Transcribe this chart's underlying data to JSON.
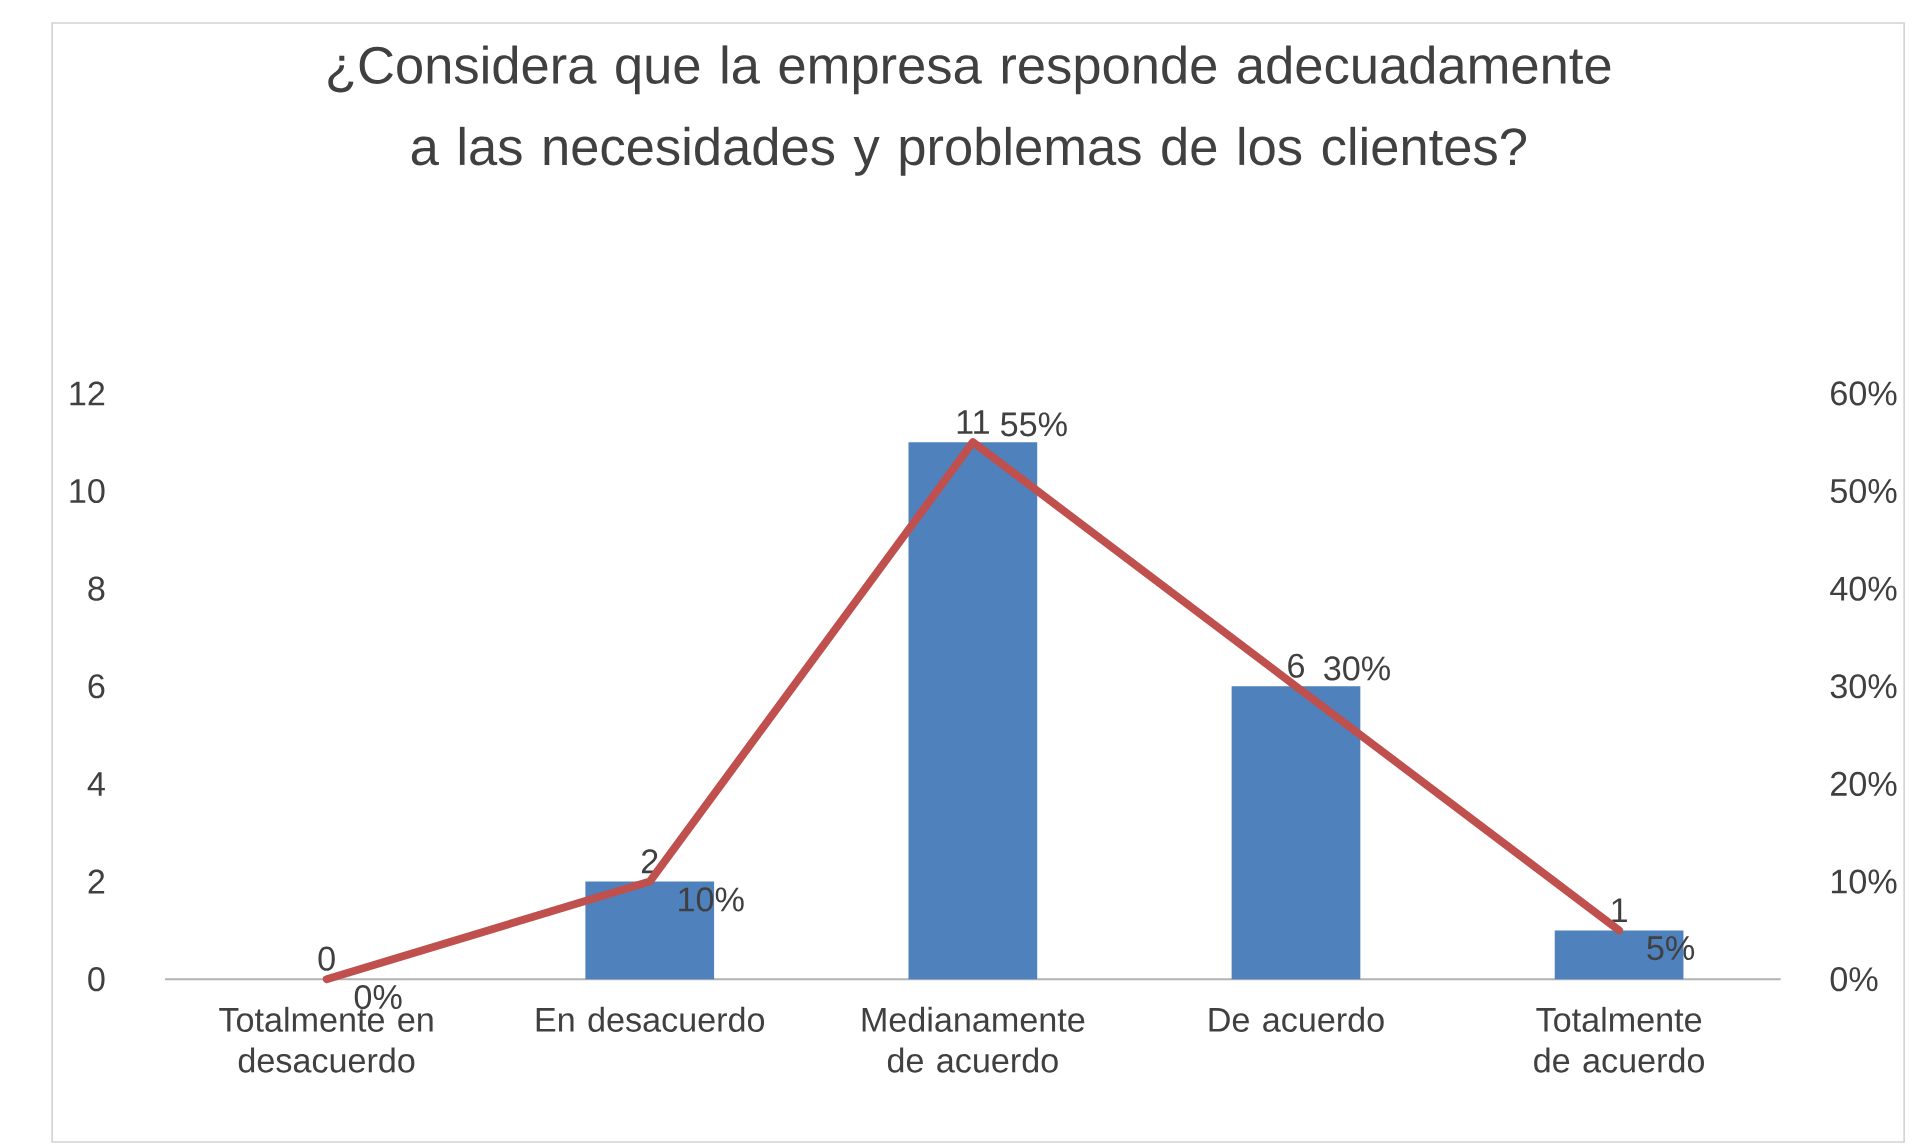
{
  "chart_data": {
    "type": "bar",
    "title": "¿Considera que la empresa responde adecuadamente a las necesidades y problemas de los clientes?",
    "categories": [
      "Totalmente en desacuerdo",
      "En desacuerdo",
      "Medianamente de acuerdo",
      "De acuerdo",
      "Totalmente de acuerdo"
    ],
    "series": [
      {
        "color": "#4f81bd",
        "values": [
          0,
          2,
          11,
          6,
          1
        ],
        "value_labels": [
          "0",
          "2",
          "11",
          "6",
          "1"
        ]
      },
      {
        "type": "line",
        "axis": "y2",
        "color": "#c0504d",
        "values": [
          0,
          10,
          55,
          30,
          5
        ],
        "value_labels": [
          "0%",
          "10%",
          "55%",
          "30%",
          "5%"
        ]
      }
    ],
    "ylim": [
      0,
      12
    ],
    "yticks": [
      0,
      2,
      4,
      6,
      8,
      10,
      12
    ],
    "y2lim": [
      0,
      60
    ],
    "y2ticks": [
      {
        "value": 0,
        "label": "0%"
      },
      {
        "value": 10,
        "label": "10%"
      },
      {
        "value": 20,
        "label": "20%"
      },
      {
        "value": 30,
        "label": "30%"
      },
      {
        "value": 40,
        "label": "40%"
      },
      {
        "value": 50,
        "label": "50%"
      },
      {
        "value": 60,
        "label": "60%"
      }
    ],
    "grid": false,
    "legend": false
  }
}
